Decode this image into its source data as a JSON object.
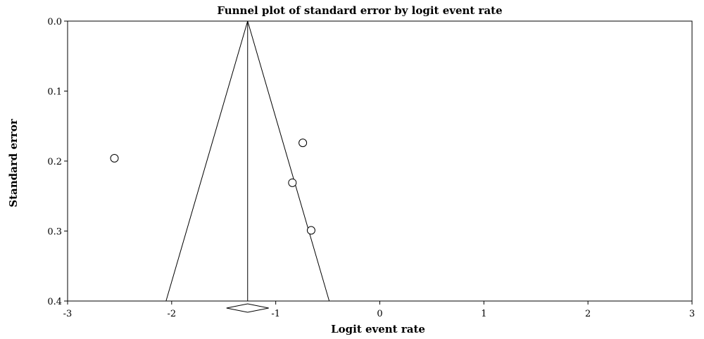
{
  "chart_data": {
    "type": "scatter",
    "title": "Funnel plot of standard error by logit event rate",
    "xlabel": "Logit event rate",
    "ylabel": "Standard error",
    "xlim": [
      -3,
      3
    ],
    "ylim": [
      0.0,
      0.4
    ],
    "y_inverted": true,
    "x_ticks": [
      "-3",
      "-2",
      "-1",
      "0",
      "1",
      "2",
      "3"
    ],
    "y_ticks": [
      "0.0",
      "0.1",
      "0.2",
      "0.3",
      "0.4"
    ],
    "pooled_estimate": -1.27,
    "ci_half_width_at_max_se": 0.784,
    "points": [
      {
        "x": -2.55,
        "y": 0.196
      },
      {
        "x": -0.74,
        "y": 0.174
      },
      {
        "x": -0.84,
        "y": 0.231
      },
      {
        "x": -0.66,
        "y": 0.299
      }
    ],
    "grid": false,
    "legend": "none"
  }
}
